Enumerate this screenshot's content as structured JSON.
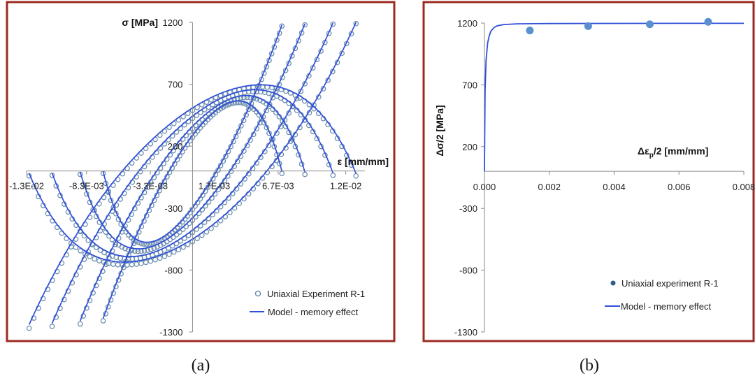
{
  "figure": {
    "colors": {
      "frame": "#9b2a22",
      "model_line": "#2f4fd8",
      "experiment_marker": "#6f8fb0",
      "experiment_dot": "#5b8fd0",
      "axis": "#8a8a8a"
    }
  },
  "chart_data": [
    {
      "id": "a",
      "type": "line",
      "caption": "(a)",
      "xlabel": "ε [mm/mm]",
      "ylabel": "σ [MPa]",
      "xlim": [
        -0.013,
        0.0135
      ],
      "ylim": [
        -1300,
        1200
      ],
      "x_ticks": [
        -0.013,
        -0.0083,
        -0.0033,
        0.0017,
        0.0067,
        0.012
      ],
      "x_tick_labels": [
        "-1.3E-02",
        "-8.3E-03",
        "-3.3E-03",
        "1.7E-03",
        "6.7E-03",
        "1.2E-02"
      ],
      "y_ticks": [
        1200,
        700,
        200,
        -300,
        -800,
        -1300
      ],
      "y_tick_labels": [
        "1200",
        "700",
        "200",
        "-300",
        "-800",
        "-1300"
      ],
      "legend_position": "bottom-right",
      "grid": false,
      "series": [
        {
          "name": "Uniaxial Experiment R-1",
          "marker": "open-circle",
          "loops": [
            {
              "strain_amplitude": 0.0128,
              "stress_max": 1190,
              "stress_min": -1270
            },
            {
              "strain_amplitude": 0.011,
              "stress_max": 1185,
              "stress_min": -1255
            },
            {
              "strain_amplitude": 0.0088,
              "stress_max": 1180,
              "stress_min": -1235
            },
            {
              "strain_amplitude": 0.007,
              "stress_max": 1170,
              "stress_min": -1210
            }
          ]
        },
        {
          "name": "Model - memory effect",
          "marker": "line",
          "loops": [
            {
              "strain_amplitude": 0.0128,
              "stress_max": 1200,
              "stress_min": -1240
            },
            {
              "strain_amplitude": 0.011,
              "stress_max": 1195,
              "stress_min": -1230
            },
            {
              "strain_amplitude": 0.0088,
              "stress_max": 1190,
              "stress_min": -1210
            },
            {
              "strain_amplitude": 0.007,
              "stress_max": 1180,
              "stress_min": -1190
            }
          ]
        }
      ]
    },
    {
      "id": "b",
      "type": "scatter",
      "caption": "(b)",
      "xlabel": "Δε",
      "xlabel_sub": "p",
      "xlabel_tail": "/2 [mm/mm]",
      "ylabel": "Δσ/2 [MPa]",
      "xlim": [
        0,
        0.008
      ],
      "ylim": [
        -1300,
        1200
      ],
      "x_ticks": [
        0,
        0.002,
        0.004,
        0.006,
        0.008
      ],
      "x_tick_labels": [
        "0.000",
        "0.002",
        "0.004",
        "0.006",
        "0.008"
      ],
      "y_ticks": [
        1200,
        700,
        200,
        -300,
        -800,
        -1300
      ],
      "y_tick_labels": [
        "1200",
        "700",
        "200",
        "-300",
        "-800",
        "-1300"
      ],
      "legend_position": "bottom-right",
      "grid": false,
      "series": [
        {
          "name": "Uniaxial experiment R-1",
          "marker": "filled-circle",
          "x": [
            0.0014,
            0.0032,
            0.0051,
            0.0069
          ],
          "y": [
            1140,
            1175,
            1190,
            1210
          ]
        },
        {
          "name": "Model - memory effect",
          "marker": "line",
          "x": [
            0,
            2e-05,
            5e-05,
            0.0001,
            0.00015,
            0.0002,
            0.0003,
            0.0004,
            0.0006,
            0.001,
            0.002,
            0.004,
            0.006,
            0.008
          ],
          "y": [
            0,
            650,
            900,
            1040,
            1100,
            1135,
            1165,
            1178,
            1188,
            1194,
            1196,
            1197,
            1198,
            1198
          ]
        }
      ]
    }
  ]
}
